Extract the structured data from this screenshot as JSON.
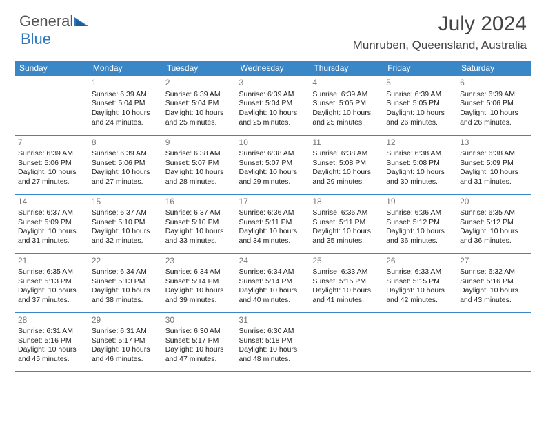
{
  "brand": {
    "part1": "General",
    "part2": "Blue"
  },
  "title": "July 2024",
  "location": "Munruben, Queensland, Australia",
  "colors": {
    "header_bg": "#3a87c8",
    "header_text": "#ffffff",
    "row_border": "#3a87c8",
    "text": "#222222",
    "daynum": "#777777",
    "title_color": "#444444",
    "brand_gray": "#555555",
    "brand_blue": "#2f78bf",
    "background": "#ffffff"
  },
  "typography": {
    "title_fontsize": 30,
    "location_fontsize": 17,
    "header_fontsize": 12,
    "cell_fontsize": 10.5,
    "daynum_fontsize": 12
  },
  "columns": [
    "Sunday",
    "Monday",
    "Tuesday",
    "Wednesday",
    "Thursday",
    "Friday",
    "Saturday"
  ],
  "weeks": [
    [
      null,
      {
        "d": "1",
        "sr": "6:39 AM",
        "ss": "5:04 PM",
        "dl": "10 hours and 24 minutes."
      },
      {
        "d": "2",
        "sr": "6:39 AM",
        "ss": "5:04 PM",
        "dl": "10 hours and 25 minutes."
      },
      {
        "d": "3",
        "sr": "6:39 AM",
        "ss": "5:04 PM",
        "dl": "10 hours and 25 minutes."
      },
      {
        "d": "4",
        "sr": "6:39 AM",
        "ss": "5:05 PM",
        "dl": "10 hours and 25 minutes."
      },
      {
        "d": "5",
        "sr": "6:39 AM",
        "ss": "5:05 PM",
        "dl": "10 hours and 26 minutes."
      },
      {
        "d": "6",
        "sr": "6:39 AM",
        "ss": "5:06 PM",
        "dl": "10 hours and 26 minutes."
      }
    ],
    [
      {
        "d": "7",
        "sr": "6:39 AM",
        "ss": "5:06 PM",
        "dl": "10 hours and 27 minutes."
      },
      {
        "d": "8",
        "sr": "6:39 AM",
        "ss": "5:06 PM",
        "dl": "10 hours and 27 minutes."
      },
      {
        "d": "9",
        "sr": "6:38 AM",
        "ss": "5:07 PM",
        "dl": "10 hours and 28 minutes."
      },
      {
        "d": "10",
        "sr": "6:38 AM",
        "ss": "5:07 PM",
        "dl": "10 hours and 29 minutes."
      },
      {
        "d": "11",
        "sr": "6:38 AM",
        "ss": "5:08 PM",
        "dl": "10 hours and 29 minutes."
      },
      {
        "d": "12",
        "sr": "6:38 AM",
        "ss": "5:08 PM",
        "dl": "10 hours and 30 minutes."
      },
      {
        "d": "13",
        "sr": "6:38 AM",
        "ss": "5:09 PM",
        "dl": "10 hours and 31 minutes."
      }
    ],
    [
      {
        "d": "14",
        "sr": "6:37 AM",
        "ss": "5:09 PM",
        "dl": "10 hours and 31 minutes."
      },
      {
        "d": "15",
        "sr": "6:37 AM",
        "ss": "5:10 PM",
        "dl": "10 hours and 32 minutes."
      },
      {
        "d": "16",
        "sr": "6:37 AM",
        "ss": "5:10 PM",
        "dl": "10 hours and 33 minutes."
      },
      {
        "d": "17",
        "sr": "6:36 AM",
        "ss": "5:11 PM",
        "dl": "10 hours and 34 minutes."
      },
      {
        "d": "18",
        "sr": "6:36 AM",
        "ss": "5:11 PM",
        "dl": "10 hours and 35 minutes."
      },
      {
        "d": "19",
        "sr": "6:36 AM",
        "ss": "5:12 PM",
        "dl": "10 hours and 36 minutes."
      },
      {
        "d": "20",
        "sr": "6:35 AM",
        "ss": "5:12 PM",
        "dl": "10 hours and 36 minutes."
      }
    ],
    [
      {
        "d": "21",
        "sr": "6:35 AM",
        "ss": "5:13 PM",
        "dl": "10 hours and 37 minutes."
      },
      {
        "d": "22",
        "sr": "6:34 AM",
        "ss": "5:13 PM",
        "dl": "10 hours and 38 minutes."
      },
      {
        "d": "23",
        "sr": "6:34 AM",
        "ss": "5:14 PM",
        "dl": "10 hours and 39 minutes."
      },
      {
        "d": "24",
        "sr": "6:34 AM",
        "ss": "5:14 PM",
        "dl": "10 hours and 40 minutes."
      },
      {
        "d": "25",
        "sr": "6:33 AM",
        "ss": "5:15 PM",
        "dl": "10 hours and 41 minutes."
      },
      {
        "d": "26",
        "sr": "6:33 AM",
        "ss": "5:15 PM",
        "dl": "10 hours and 42 minutes."
      },
      {
        "d": "27",
        "sr": "6:32 AM",
        "ss": "5:16 PM",
        "dl": "10 hours and 43 minutes."
      }
    ],
    [
      {
        "d": "28",
        "sr": "6:31 AM",
        "ss": "5:16 PM",
        "dl": "10 hours and 45 minutes."
      },
      {
        "d": "29",
        "sr": "6:31 AM",
        "ss": "5:17 PM",
        "dl": "10 hours and 46 minutes."
      },
      {
        "d": "30",
        "sr": "6:30 AM",
        "ss": "5:17 PM",
        "dl": "10 hours and 47 minutes."
      },
      {
        "d": "31",
        "sr": "6:30 AM",
        "ss": "5:18 PM",
        "dl": "10 hours and 48 minutes."
      },
      null,
      null,
      null
    ]
  ],
  "labels": {
    "sunrise": "Sunrise:",
    "sunset": "Sunset:",
    "daylight": "Daylight:"
  }
}
